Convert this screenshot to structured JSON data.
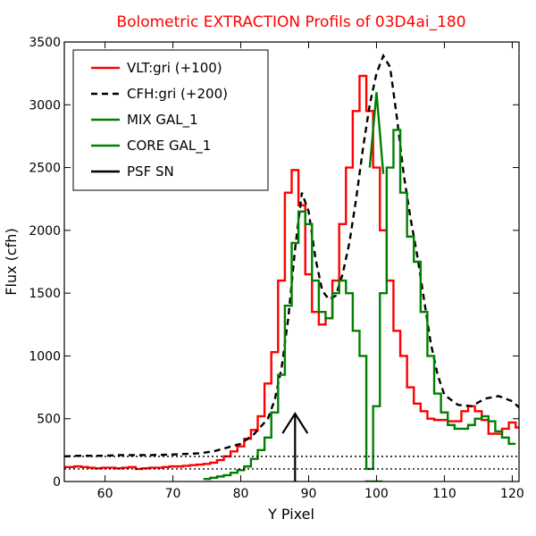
{
  "chart_data": {
    "type": "line",
    "title": "Bolometric EXTRACTION Profils of 03D4ai_180",
    "xlabel": "Y Pixel",
    "ylabel": "Flux (cfh)",
    "xlim": [
      54,
      121
    ],
    "ylim": [
      0,
      3500
    ],
    "xticks": [
      60,
      70,
      80,
      90,
      100,
      110,
      120
    ],
    "yticks": [
      0,
      500,
      1000,
      1500,
      2000,
      2500,
      3000,
      3500
    ],
    "grid": false,
    "legend_position": "top-left",
    "series": [
      {
        "name": "VLT:gri (+100)",
        "style": "steps",
        "color": "#ff0000",
        "x": [
          54,
          55,
          56,
          57,
          58,
          59,
          60,
          61,
          62,
          63,
          64,
          65,
          66,
          67,
          68,
          69,
          70,
          71,
          72,
          73,
          74,
          75,
          76,
          77,
          78,
          79,
          80,
          81,
          82,
          83,
          84,
          85,
          86,
          87,
          88,
          89,
          90,
          91,
          92,
          93,
          94,
          95,
          96,
          97,
          98,
          99,
          100,
          101,
          102,
          103,
          104,
          105,
          106,
          107,
          108,
          109,
          110,
          111,
          112,
          113,
          114,
          115,
          116,
          117,
          118,
          119,
          120,
          121
        ],
        "y": [
          115,
          115,
          120,
          115,
          110,
          105,
          110,
          110,
          105,
          110,
          115,
          100,
          105,
          110,
          110,
          115,
          120,
          120,
          125,
          130,
          135,
          140,
          150,
          170,
          200,
          240,
          280,
          340,
          410,
          520,
          780,
          1030,
          1600,
          2300,
          2480,
          2200,
          1650,
          1350,
          1250,
          1300,
          1600,
          2050,
          2500,
          2950,
          3230,
          2950,
          2500,
          2000,
          1600,
          1200,
          1000,
          750,
          620,
          560,
          500,
          490,
          490,
          480,
          480,
          560,
          600,
          560,
          490,
          380,
          380,
          420,
          470,
          430
        ]
      },
      {
        "name": "CFH:gri (+200)",
        "style": "dashed",
        "color": "#000000",
        "x": [
          54,
          56,
          58,
          60,
          62,
          64,
          66,
          68,
          70,
          72,
          74,
          76,
          78,
          80,
          82,
          84,
          85,
          86,
          87,
          88,
          89,
          90,
          91,
          92,
          93,
          94,
          95,
          96,
          97,
          98,
          99,
          100,
          101,
          102,
          103,
          104,
          105,
          106,
          107,
          108,
          109,
          110,
          112,
          114,
          116,
          118,
          120,
          121
        ],
        "y": [
          200,
          205,
          205,
          205,
          210,
          210,
          210,
          212,
          215,
          220,
          225,
          240,
          270,
          300,
          380,
          500,
          650,
          900,
          1300,
          1850,
          2300,
          2150,
          1780,
          1520,
          1450,
          1480,
          1650,
          1900,
          2250,
          2650,
          3000,
          3250,
          3390,
          3300,
          2900,
          2450,
          2100,
          1800,
          1450,
          1100,
          850,
          690,
          610,
          600,
          660,
          680,
          640,
          590
        ]
      },
      {
        "name": "MIX GAL_1",
        "style": "steps",
        "color": "#008000",
        "x": [
          75,
          76,
          77,
          78,
          79,
          80,
          81,
          82,
          83,
          84,
          85,
          86,
          87,
          88,
          89,
          90,
          91,
          92,
          93,
          94,
          95,
          96,
          97,
          98,
          99,
          100,
          101,
          102,
          103,
          104,
          105,
          106,
          107,
          108,
          109,
          110,
          111,
          112,
          113,
          114,
          115,
          116,
          117,
          118,
          119,
          120
        ],
        "y": [
          20,
          30,
          40,
          50,
          70,
          90,
          120,
          180,
          250,
          350,
          550,
          850,
          1400,
          1900,
          2150,
          2050,
          1600,
          1350,
          1300,
          1500,
          1600,
          1500,
          1200,
          1000,
          100,
          600,
          1500,
          2500,
          2800,
          2300,
          1950,
          1750,
          1350,
          1000,
          700,
          550,
          450,
          420,
          420,
          450,
          500,
          520,
          480,
          400,
          350,
          300
        ]
      },
      {
        "name": "CORE GAL_1",
        "style": "line",
        "color": "#008000",
        "x": [
          99,
          100,
          101
        ],
        "y": [
          2500,
          3100,
          2450
        ]
      },
      {
        "name": "PSF SN",
        "style": "arrow",
        "color": "#000000",
        "x": [
          88,
          88
        ],
        "y": [
          0,
          540
        ]
      },
      {
        "name": "",
        "style": "steps",
        "color": "#008000",
        "x": [
          98.8,
          99.2,
          99.6,
          100,
          100.4
        ],
        "y": [
          0,
          0,
          0,
          0,
          0
        ]
      },
      {
        "name": "",
        "style": "dotted",
        "color": "#000000",
        "x": [
          54,
          121
        ],
        "y": [
          200,
          200
        ]
      },
      {
        "name": "",
        "style": "dotted",
        "color": "#000000",
        "x": [
          54,
          121
        ],
        "y": [
          100,
          100
        ]
      }
    ]
  },
  "legend": {
    "items": [
      {
        "label": "VLT:gri (+100)",
        "color": "#ff0000",
        "style": "solid"
      },
      {
        "label": "CFH:gri (+200)",
        "color": "#000000",
        "style": "dashed"
      },
      {
        "label": "MIX GAL_1",
        "color": "#008000",
        "style": "solid"
      },
      {
        "label": "CORE GAL_1",
        "color": "#008000",
        "style": "solid"
      },
      {
        "label": "PSF SN",
        "color": "#000000",
        "style": "solid"
      }
    ]
  }
}
